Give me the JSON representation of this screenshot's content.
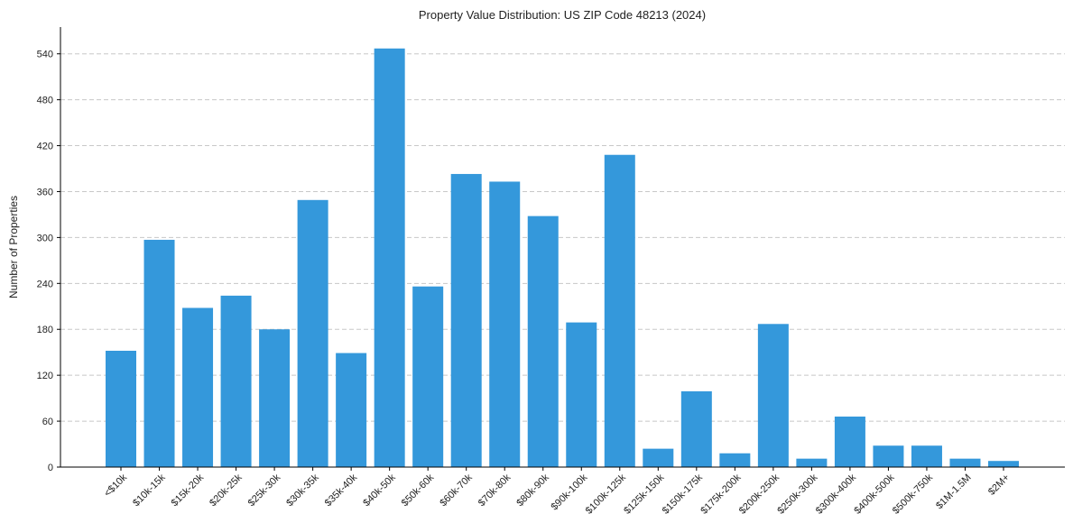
{
  "chart_data": {
    "type": "bar",
    "title": "Property Value Distribution: US ZIP Code 48213 (2024)",
    "xlabel": "",
    "ylabel": "Number of Properties",
    "categories": [
      "<$10k",
      "$10k-15k",
      "$15k-20k",
      "$20k-25k",
      "$25k-30k",
      "$30k-35k",
      "$35k-40k",
      "$40k-50k",
      "$50k-60k",
      "$60k-70k",
      "$70k-80k",
      "$80k-90k",
      "$90k-100k",
      "$100k-125k",
      "$125k-150k",
      "$150k-175k",
      "$175k-200k",
      "$200k-250k",
      "$250k-300k",
      "$300k-400k",
      "$400k-500k",
      "$500k-750k",
      "$1M-1.5M",
      "$2M+"
    ],
    "values": [
      152,
      297,
      208,
      224,
      180,
      349,
      149,
      547,
      236,
      383,
      373,
      328,
      189,
      408,
      24,
      99,
      18,
      187,
      11,
      66,
      28,
      28,
      11,
      8
    ],
    "yticks": [
      0,
      60,
      120,
      180,
      240,
      300,
      360,
      420,
      480,
      540
    ],
    "ylim": [
      0,
      575
    ],
    "grid": "y-dashed",
    "bar_color": "#3498db"
  }
}
